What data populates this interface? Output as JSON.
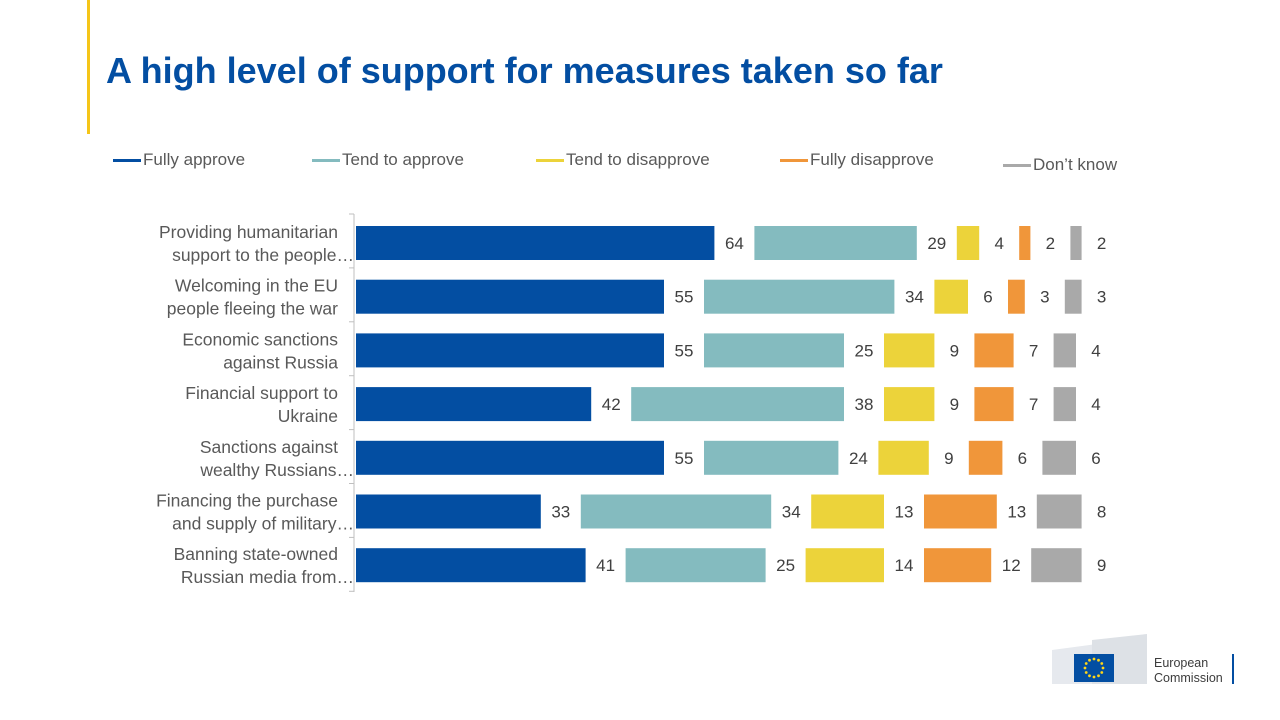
{
  "title": "A high level of support for measures taken so far",
  "colors": {
    "accent": "#f5c518",
    "title": "#034ea2"
  },
  "chart_data": {
    "type": "bar",
    "orientation": "horizontal",
    "stacked": true,
    "legend_position": "top",
    "grid": false,
    "xlim": [
      0,
      100
    ],
    "categories": [
      "Providing humanitarian support to the people…",
      "Welcoming in the EU people fleeing the war",
      "Economic sanctions against Russia",
      "Financial support to Ukraine",
      "Sanctions against wealthy Russians…",
      "Financing the purchase and supply of military…",
      "Banning state-owned Russian media from…"
    ],
    "category_lines": [
      [
        "Providing humanitarian",
        "support to the people…"
      ],
      [
        "Welcoming in the EU",
        "people fleeing the war"
      ],
      [
        "Economic sanctions",
        "against Russia"
      ],
      [
        "Financial support to",
        "Ukraine"
      ],
      [
        "Sanctions against",
        "wealthy Russians…"
      ],
      [
        "Financing the purchase",
        "and supply of military…"
      ],
      [
        "Banning state-owned",
        "Russian media from…"
      ]
    ],
    "series": [
      {
        "name": "Fully approve",
        "color": "#034ea2",
        "values": [
          64,
          55,
          55,
          42,
          55,
          33,
          41
        ]
      },
      {
        "name": "Tend to approve",
        "color": "#84bbbf",
        "values": [
          29,
          34,
          25,
          38,
          24,
          34,
          25
        ]
      },
      {
        "name": "Tend to disapprove",
        "color": "#ecd33a",
        "values": [
          4,
          6,
          9,
          9,
          9,
          13,
          14
        ]
      },
      {
        "name": "Fully disapprove",
        "color": "#f0963a",
        "values": [
          2,
          3,
          7,
          7,
          6,
          13,
          12
        ]
      },
      {
        "name": "Don’t know",
        "color": "#a9a9a9",
        "values": [
          2,
          3,
          4,
          4,
          6,
          8,
          9
        ]
      }
    ]
  },
  "logo": {
    "line1": "European",
    "line2": "Commission"
  }
}
